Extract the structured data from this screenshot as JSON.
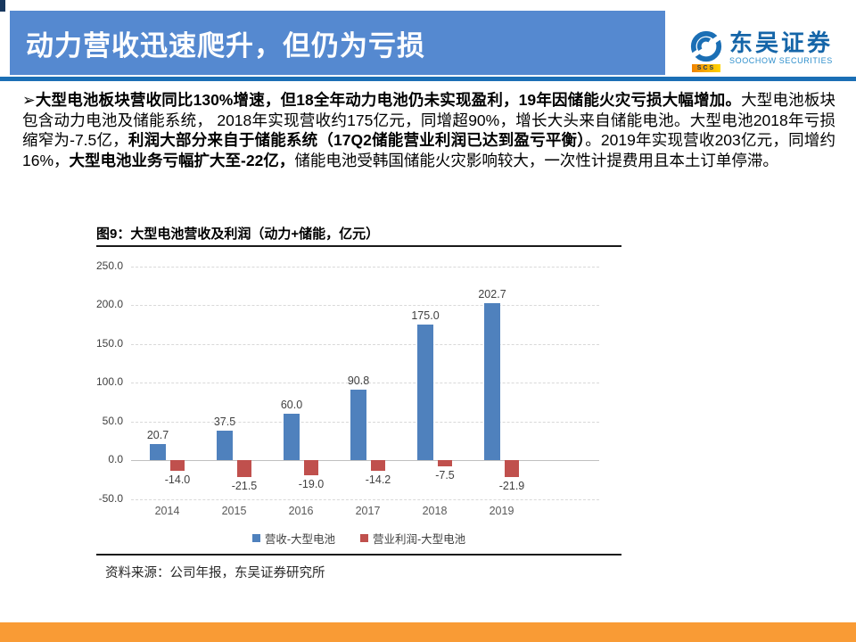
{
  "header": {
    "title": "动力营收迅速爬升，但仍为亏损",
    "logo": {
      "cn": "东吴证券",
      "en": "SOOCHOW SECURITIES",
      "abbr": "SCS"
    },
    "colors": {
      "banner": "#5589D0",
      "rule": "#1B6FB5",
      "corner": "#17375E"
    }
  },
  "paragraph": {
    "bullet": "➢",
    "runs": [
      {
        "text": "大型电池板块营收同比130%增速，但18全年动力电池仍未实现盈利，19年因储能火灾亏损大幅增加。",
        "bold": true
      },
      {
        "text": "大型电池板块包含动力电池及储能系统， 2018年实现营收约175亿元，同增超90%，增长大头来自储能电池。大型电池2018年亏损缩窄为-7.5亿，",
        "bold": false
      },
      {
        "text": "利润大部分来自于储能系统（17Q2储能营业利润已达到盈亏平衡）",
        "bold": true
      },
      {
        "text": "。2019年实现营收203亿元，同增约16%，",
        "bold": false
      },
      {
        "text": "大型电池业务亏幅扩大至-22亿，",
        "bold": true
      },
      {
        "text": "储能电池受韩国储能火灾影响较大，一次性计提费用且本土订单停滞。",
        "bold": false
      }
    ]
  },
  "chart": {
    "title": "图9：大型电池营收及利润（动力+储能，亿元）",
    "source": "资料来源：公司年报，东吴证券研究所"
  },
  "chart_data": {
    "type": "bar",
    "title": "图9：大型电池营收及利润（动力+储能，亿元）",
    "categories": [
      "2014",
      "2015",
      "2016",
      "2017",
      "2018",
      "2019"
    ],
    "series": [
      {
        "name": "营收-大型电池",
        "color": "#4F81BD",
        "values": [
          20.7,
          37.5,
          60.0,
          90.8,
          175.0,
          202.7
        ]
      },
      {
        "name": "营业利润-大型电池",
        "color": "#C0504D",
        "values": [
          -14.0,
          -21.5,
          -19.0,
          -14.2,
          -7.5,
          -21.9
        ]
      }
    ],
    "xlabel": "",
    "ylabel": "",
    "ylim": [
      -50,
      250
    ],
    "ytick_step": 50,
    "grid": "horizontal dashed, solid zero line",
    "legend_position": "bottom",
    "value_labels": "above positive bars, below negative bars"
  },
  "footer": {
    "bar_color": "#F99B35"
  }
}
